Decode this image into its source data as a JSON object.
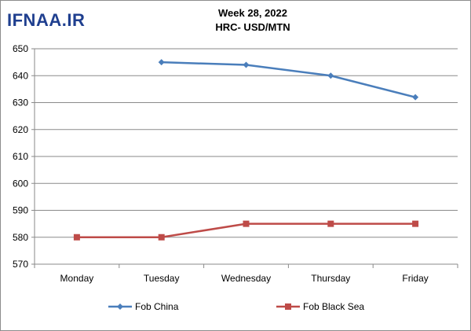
{
  "logo": {
    "text": "IFNAA.IR"
  },
  "chart_data": {
    "type": "line",
    "title": "Week 28, 2022",
    "subtitle": "HRC- USD/MTN",
    "categories": [
      "Monday",
      "Tuesday",
      "Wednesday",
      "Thursday",
      "Friday"
    ],
    "ylim": [
      570,
      650
    ],
    "yticks": [
      570,
      580,
      590,
      600,
      610,
      620,
      630,
      640,
      650
    ],
    "grid": true,
    "legend_position": "bottom",
    "series": [
      {
        "name": "Fob China",
        "color": "#4a7ebb",
        "marker": "diamond",
        "values": [
          null,
          645,
          644,
          640,
          632
        ]
      },
      {
        "name": "Fob Black Sea",
        "color": "#be4b48",
        "marker": "square",
        "values": [
          580,
          580,
          585,
          585,
          585
        ]
      }
    ]
  }
}
